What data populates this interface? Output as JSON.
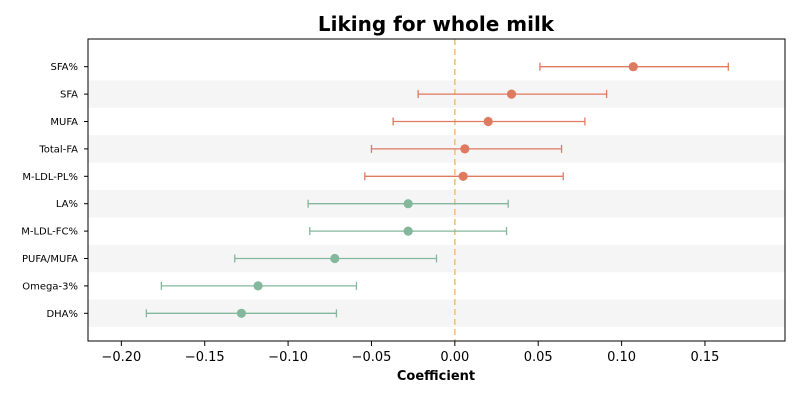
{
  "chart_data": {
    "type": "forest",
    "title": "Liking for whole milk",
    "xlabel": "Coefficient",
    "ylabel": "",
    "xlim": [
      -0.22,
      0.198
    ],
    "xticks": [
      -0.2,
      -0.15,
      -0.1,
      -0.05,
      0.0,
      0.05,
      0.1,
      0.15
    ],
    "xtick_labels": [
      "−0.20",
      "−0.15",
      "−0.10",
      "−0.05",
      "0.00",
      "0.05",
      "0.10",
      "0.15"
    ],
    "reference_line": {
      "x": 0,
      "style": "dashed",
      "color": "#f5c07a"
    },
    "colors": {
      "positive": "#de7a5f",
      "negative": "#84b79c",
      "band": "#f5f5f5"
    },
    "grid": false,
    "rows": [
      {
        "label": "SFA%",
        "estimate": 0.107,
        "lower": 0.051,
        "upper": 0.164
      },
      {
        "label": "SFA",
        "estimate": 0.034,
        "lower": -0.022,
        "upper": 0.091
      },
      {
        "label": "MUFA",
        "estimate": 0.02,
        "lower": -0.037,
        "upper": 0.078
      },
      {
        "label": "Total-FA",
        "estimate": 0.006,
        "lower": -0.05,
        "upper": 0.064
      },
      {
        "label": "M-LDL-PL%",
        "estimate": 0.005,
        "lower": -0.054,
        "upper": 0.065
      },
      {
        "label": "LA%",
        "estimate": -0.028,
        "lower": -0.088,
        "upper": 0.032
      },
      {
        "label": "M-LDL-FC%",
        "estimate": -0.028,
        "lower": -0.087,
        "upper": 0.031
      },
      {
        "label": "PUFA/MUFA",
        "estimate": -0.072,
        "lower": -0.132,
        "upper": -0.011
      },
      {
        "label": "Omega-3%",
        "estimate": -0.118,
        "lower": -0.176,
        "upper": -0.059
      },
      {
        "label": "DHA%",
        "estimate": -0.128,
        "lower": -0.185,
        "upper": -0.071
      }
    ]
  }
}
